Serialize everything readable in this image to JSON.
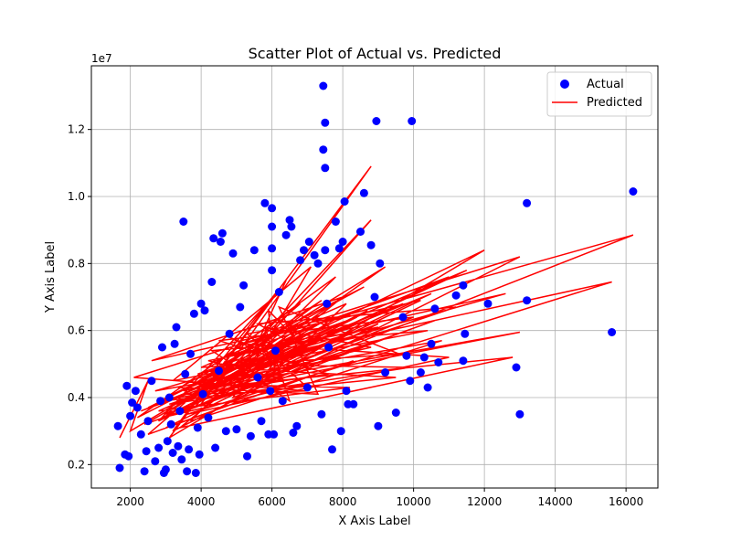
{
  "chart_data": {
    "type": "scatter",
    "title": "Scatter Plot of Actual vs. Predicted",
    "xlabel": "X Axis Label",
    "ylabel": "Y Axis Label",
    "y_offset_text": "1e7",
    "xlim": [
      900,
      16900
    ],
    "ylim": [
      1300000,
      13900000
    ],
    "x_ticks": [
      2000,
      4000,
      6000,
      8000,
      10000,
      12000,
      14000,
      16000
    ],
    "x_tick_labels": [
      "2000",
      "4000",
      "6000",
      "8000",
      "10000",
      "12000",
      "14000",
      "16000"
    ],
    "y_ticks": [
      2000000,
      4000000,
      6000000,
      8000000,
      10000000,
      12000000
    ],
    "y_tick_labels": [
      "0.2",
      "0.4",
      "0.6",
      "0.8",
      "1.0",
      "1.2"
    ],
    "grid": true,
    "legend_position": "top-right",
    "series": [
      {
        "name": "Actual",
        "kind": "scatter",
        "color": "#0000ff",
        "points": [
          [
            1650,
            3150000
          ],
          [
            1700,
            1900000
          ],
          [
            1850,
            2300000
          ],
          [
            1900,
            4350000
          ],
          [
            1950,
            2250000
          ],
          [
            2000,
            3450000
          ],
          [
            2050,
            3850000
          ],
          [
            2150,
            4200000
          ],
          [
            2200,
            3700000
          ],
          [
            2300,
            2900000
          ],
          [
            2400,
            1800000
          ],
          [
            2450,
            2400000
          ],
          [
            2500,
            3300000
          ],
          [
            2600,
            4500000
          ],
          [
            2700,
            2100000
          ],
          [
            2800,
            2500000
          ],
          [
            2850,
            3900000
          ],
          [
            2900,
            5500000
          ],
          [
            2950,
            1750000
          ],
          [
            3000,
            1850000
          ],
          [
            3050,
            2700000
          ],
          [
            3100,
            4000000
          ],
          [
            3150,
            3200000
          ],
          [
            3200,
            2350000
          ],
          [
            3250,
            5600000
          ],
          [
            3300,
            6100000
          ],
          [
            3350,
            2550000
          ],
          [
            3400,
            3600000
          ],
          [
            3450,
            2150000
          ],
          [
            3500,
            9250000
          ],
          [
            3550,
            4700000
          ],
          [
            3600,
            1800000
          ],
          [
            3650,
            2450000
          ],
          [
            3700,
            5300000
          ],
          [
            3800,
            6500000
          ],
          [
            3850,
            1750000
          ],
          [
            3900,
            3100000
          ],
          [
            3950,
            2300000
          ],
          [
            4000,
            6800000
          ],
          [
            4050,
            4100000
          ],
          [
            4100,
            6600000
          ],
          [
            4200,
            3400000
          ],
          [
            4300,
            7450000
          ],
          [
            4350,
            8750000
          ],
          [
            4400,
            2500000
          ],
          [
            4500,
            4800000
          ],
          [
            4550,
            8650000
          ],
          [
            4600,
            8900000
          ],
          [
            4700,
            3000000
          ],
          [
            4800,
            5900000
          ],
          [
            4900,
            8300000
          ],
          [
            5000,
            3050000
          ],
          [
            5100,
            6700000
          ],
          [
            5200,
            7350000
          ],
          [
            5300,
            2250000
          ],
          [
            5400,
            2850000
          ],
          [
            5500,
            8400000
          ],
          [
            5600,
            4600000
          ],
          [
            5700,
            3300000
          ],
          [
            5800,
            9800000
          ],
          [
            5900,
            2900000
          ],
          [
            5950,
            4200000
          ],
          [
            6000,
            9650000
          ],
          [
            6000,
            9100000
          ],
          [
            6000,
            8450000
          ],
          [
            6000,
            7800000
          ],
          [
            6050,
            2900000
          ],
          [
            6100,
            5400000
          ],
          [
            6200,
            7150000
          ],
          [
            6300,
            3900000
          ],
          [
            6400,
            8850000
          ],
          [
            6500,
            9300000
          ],
          [
            6550,
            9100000
          ],
          [
            6600,
            2950000
          ],
          [
            6700,
            3150000
          ],
          [
            6800,
            8100000
          ],
          [
            6900,
            8400000
          ],
          [
            7000,
            4300000
          ],
          [
            7050,
            8650000
          ],
          [
            7200,
            8250000
          ],
          [
            7300,
            8000000
          ],
          [
            7400,
            3500000
          ],
          [
            7450,
            13300000
          ],
          [
            7450,
            11400000
          ],
          [
            7500,
            12200000
          ],
          [
            7500,
            10850000
          ],
          [
            7500,
            8400000
          ],
          [
            7550,
            6800000
          ],
          [
            7600,
            5500000
          ],
          [
            7700,
            2450000
          ],
          [
            7800,
            9250000
          ],
          [
            7900,
            8450000
          ],
          [
            7950,
            3000000
          ],
          [
            8000,
            8650000
          ],
          [
            8050,
            9850000
          ],
          [
            8100,
            4200000
          ],
          [
            8150,
            3800000
          ],
          [
            8300,
            3800000
          ],
          [
            8500,
            8950000
          ],
          [
            8600,
            10100000
          ],
          [
            8800,
            8550000
          ],
          [
            8900,
            7000000
          ],
          [
            8950,
            12250000
          ],
          [
            9000,
            3150000
          ],
          [
            9050,
            8000000
          ],
          [
            9200,
            4750000
          ],
          [
            9500,
            3550000
          ],
          [
            9700,
            6400000
          ],
          [
            9800,
            5250000
          ],
          [
            9900,
            4500000
          ],
          [
            9950,
            12250000
          ],
          [
            10200,
            4750000
          ],
          [
            10300,
            5200000
          ],
          [
            10400,
            4300000
          ],
          [
            10500,
            5600000
          ],
          [
            10600,
            6650000
          ],
          [
            10700,
            5050000
          ],
          [
            11200,
            7050000
          ],
          [
            11400,
            5100000
          ],
          [
            11400,
            7350000
          ],
          [
            11450,
            5900000
          ],
          [
            12100,
            6800000
          ],
          [
            12900,
            4900000
          ],
          [
            13000,
            3500000
          ],
          [
            13200,
            6900000
          ],
          [
            13200,
            9800000
          ],
          [
            15600,
            5950000
          ],
          [
            16200,
            10150000
          ]
        ]
      },
      {
        "name": "Predicted",
        "kind": "line",
        "color": "#ff0000",
        "points": [
          [
            1700,
            2800000
          ],
          [
            2500,
            4500000
          ],
          [
            2000,
            3000000
          ],
          [
            5500,
            5200000
          ],
          [
            2200,
            3400000
          ],
          [
            6800,
            6800000
          ],
          [
            2500,
            2900000
          ],
          [
            8300,
            5100000
          ],
          [
            3000,
            3100000
          ],
          [
            9000,
            6200000
          ],
          [
            2300,
            3600000
          ],
          [
            10500,
            7100000
          ],
          [
            2800,
            3300000
          ],
          [
            6200,
            7200000
          ],
          [
            3100,
            2800000
          ],
          [
            12000,
            8400000
          ],
          [
            3500,
            4100000
          ],
          [
            7000,
            4200000
          ],
          [
            2100,
            4600000
          ],
          [
            13000,
            8200000
          ],
          [
            3200,
            3000000
          ],
          [
            8800,
            10900000
          ],
          [
            4000,
            3800000
          ],
          [
            16200,
            8850000
          ],
          [
            5200,
            5600000
          ],
          [
            11000,
            5200000
          ],
          [
            3600,
            3500000
          ],
          [
            15600,
            7450000
          ],
          [
            4500,
            4900000
          ],
          [
            9500,
            4600000
          ],
          [
            2900,
            3900000
          ],
          [
            13000,
            5950000
          ],
          [
            4200,
            4300000
          ],
          [
            12800,
            5200000
          ],
          [
            3400,
            3100000
          ],
          [
            8000,
            7000000
          ],
          [
            2600,
            5100000
          ],
          [
            10200,
            6900000
          ],
          [
            3800,
            3700000
          ],
          [
            8800,
            9300000
          ],
          [
            4800,
            4500000
          ],
          [
            11500,
            7800000
          ],
          [
            3000,
            4000000
          ],
          [
            7500,
            6300000
          ],
          [
            2400,
            3200000
          ],
          [
            10600,
            6300000
          ],
          [
            3300,
            3500000
          ],
          [
            9200,
            7900000
          ],
          [
            4100,
            4600000
          ],
          [
            12600,
            7100000
          ],
          [
            5000,
            5300000
          ],
          [
            8500,
            6000000
          ],
          [
            2700,
            4200000
          ],
          [
            10800,
            5700000
          ],
          [
            3700,
            3300000
          ],
          [
            7800,
            7600000
          ],
          [
            4400,
            5000000
          ],
          [
            9900,
            4900000
          ],
          [
            3100,
            3800000
          ],
          [
            11200,
            6700000
          ],
          [
            5600,
            6200000
          ],
          [
            6600,
            5600000
          ],
          [
            3900,
            4400000
          ],
          [
            8200,
            4300000
          ],
          [
            2800,
            3600000
          ],
          [
            9700,
            6800000
          ],
          [
            4600,
            4700000
          ],
          [
            7400,
            6900000
          ],
          [
            3500,
            4200000
          ],
          [
            8800,
            5500000
          ],
          [
            5800,
            6100000
          ],
          [
            6500,
            3900000
          ],
          [
            4300,
            5400000
          ],
          [
            10400,
            6000000
          ],
          [
            3200,
            4500000
          ],
          [
            7100,
            7900000
          ],
          [
            4900,
            4000000
          ],
          [
            9300,
            5800000
          ],
          [
            3600,
            3900000
          ],
          [
            7900,
            6400000
          ],
          [
            5300,
            5900000
          ],
          [
            6900,
            4400000
          ],
          [
            2900,
            3400000
          ],
          [
            11000,
            7600000
          ],
          [
            4700,
            5200000
          ],
          [
            8600,
            7300000
          ],
          [
            3400,
            4300000
          ],
          [
            7300,
            4100000
          ],
          [
            6200,
            6700000
          ],
          [
            9600,
            5300000
          ],
          [
            4000,
            4900000
          ],
          [
            8100,
            6800000
          ],
          [
            5500,
            4200000
          ],
          [
            6800,
            6200000
          ],
          [
            3000,
            3500000
          ],
          [
            10000,
            6400000
          ],
          [
            4500,
            5700000
          ],
          [
            7600,
            4700000
          ],
          [
            3800,
            4100000
          ],
          [
            6400,
            7500000
          ],
          [
            5100,
            4500000
          ],
          [
            8700,
            6600000
          ],
          [
            3300,
            3800000
          ],
          [
            7000,
            5400000
          ],
          [
            5900,
            6600000
          ],
          [
            6100,
            4600000
          ],
          [
            4200,
            5100000
          ],
          [
            9000,
            6100000
          ],
          [
            2500,
            3700000
          ],
          [
            6700,
            5900000
          ],
          [
            5400,
            5000000
          ],
          [
            7700,
            5600000
          ],
          [
            3900,
            4700000
          ],
          [
            8400,
            6400000
          ],
          [
            4600,
            4400000
          ],
          [
            7200,
            6000000
          ],
          [
            5700,
            5400000
          ],
          [
            6300,
            5000000
          ],
          [
            4800,
            5800000
          ],
          [
            6000,
            5300000
          ]
        ]
      }
    ]
  }
}
